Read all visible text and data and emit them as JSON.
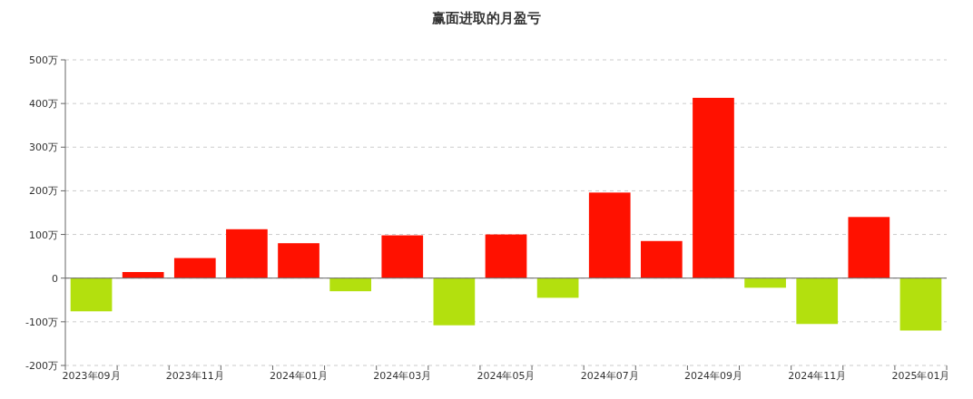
{
  "chart_data": {
    "type": "bar",
    "title": "赢面进取的月盈亏",
    "categories": [
      "2023年09月",
      null,
      "2023年11月",
      null,
      "2024年01月",
      null,
      "2024年03月",
      null,
      "2024年05月",
      null,
      "2024年07月",
      null,
      "2024年09月",
      null,
      "2024年11月",
      null,
      "2025年01月"
    ],
    "values": [
      -76,
      14,
      46,
      112,
      80,
      -30,
      98,
      -108,
      100,
      -45,
      196,
      85,
      413,
      -22,
      -105,
      140,
      -120
    ],
    "colors": [
      "#b3e00e",
      "#ff1100",
      "#ff1100",
      "#ff1100",
      "#ff1100",
      "#b3e00e",
      "#ff1100",
      "#b3e00e",
      "#ff1100",
      "#b3e00e",
      "#ff1100",
      "#ff1100",
      "#ff1100",
      "#b3e00e",
      "#b3e00e",
      "#ff1100",
      "#b3e00e"
    ],
    "ylim": [
      -200,
      500
    ],
    "yticks": [
      {
        "value": -200,
        "label": "-200万"
      },
      {
        "value": -100,
        "label": "-100万"
      },
      0,
      {
        "value": 100,
        "label": "100万"
      },
      {
        "value": 200,
        "label": "200万"
      },
      {
        "value": 300,
        "label": "300万"
      },
      {
        "value": 400,
        "label": "400万"
      },
      {
        "value": 500,
        "label": "500万"
      }
    ],
    "grid": "y"
  }
}
